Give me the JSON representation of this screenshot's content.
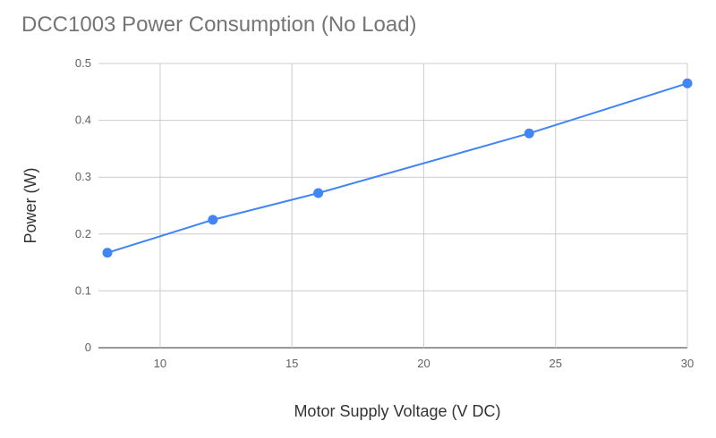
{
  "chart_data": {
    "type": "line",
    "title": "DCC1003 Power Consumption (No Load)",
    "xlabel": "Motor Supply Voltage (V DC)",
    "ylabel": "Power (W)",
    "xlim": [
      8,
      30
    ],
    "ylim": [
      0,
      0.5
    ],
    "xticks": [
      10,
      15,
      20,
      25,
      30
    ],
    "xtick_labels": [
      "10",
      "15",
      "20",
      "25",
      "30"
    ],
    "yticks": [
      0,
      0.1,
      0.2,
      0.3,
      0.4,
      0.5
    ],
    "ytick_labels": [
      "0",
      "0.1",
      "0.2",
      "0.3",
      "0.4",
      "0.5"
    ],
    "grid": true,
    "legend": "none",
    "series": [
      {
        "name": "Power (W)",
        "color": "#4285f4",
        "x": [
          8,
          12,
          16,
          24,
          30
        ],
        "y": [
          0.167,
          0.225,
          0.272,
          0.377,
          0.465
        ]
      }
    ]
  }
}
